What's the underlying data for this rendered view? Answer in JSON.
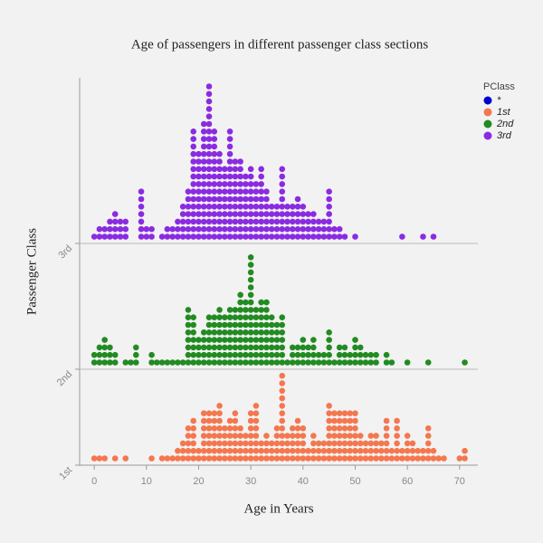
{
  "chart_data": {
    "type": "dotplot",
    "title": "Age of passengers in  different passenger class sections",
    "x_label": "Age in Years",
    "y_label": "Passenger Class",
    "categories": [
      "1st",
      "2nd",
      "3rd"
    ],
    "xlim": [
      -2.8,
      73.5
    ],
    "xticks": [
      0,
      10,
      20,
      30,
      40,
      50,
      60,
      70
    ],
    "legend_title": "PClass",
    "series": [
      {
        "name": "*",
        "color": "#0000cd",
        "x": [],
        "values": []
      },
      {
        "name": "1st",
        "color": "#f4774f",
        "x": [
          0,
          1,
          2,
          4,
          6,
          11,
          13,
          14,
          15,
          16,
          17,
          18,
          19,
          20,
          21,
          22,
          23,
          24,
          25,
          26,
          27,
          28,
          29,
          30,
          31,
          32,
          33,
          34,
          35,
          36,
          37,
          38,
          39,
          40,
          41,
          42,
          43,
          44,
          45,
          46,
          47,
          48,
          49,
          50,
          51,
          52,
          53,
          54,
          55,
          56,
          57,
          58,
          59,
          60,
          61,
          62,
          63,
          64,
          65,
          66,
          67,
          70,
          71
        ],
        "values": [
          1,
          1,
          1,
          1,
          1,
          1,
          1,
          1,
          1,
          2,
          3,
          5,
          6,
          2,
          7,
          7,
          7,
          8,
          5,
          6,
          7,
          5,
          4,
          7,
          8,
          3,
          4,
          3,
          5,
          12,
          4,
          5,
          6,
          5,
          2,
          4,
          3,
          3,
          8,
          7,
          7,
          7,
          7,
          7,
          4,
          3,
          4,
          4,
          3,
          6,
          2,
          6,
          2,
          4,
          3,
          2,
          2,
          5,
          2,
          1,
          1,
          1,
          2
        ]
      },
      {
        "name": "2nd",
        "color": "#228b22",
        "x": [
          0,
          1,
          2,
          3,
          4,
          6,
          7,
          8,
          11,
          12,
          13,
          14,
          15,
          16,
          17,
          18,
          19,
          20,
          21,
          22,
          23,
          24,
          25,
          26,
          27,
          28,
          29,
          30,
          31,
          32,
          33,
          34,
          35,
          36,
          37,
          38,
          39,
          40,
          41,
          42,
          43,
          44,
          45,
          46,
          47,
          48,
          49,
          50,
          51,
          52,
          53,
          54,
          56,
          57,
          60,
          64,
          71
        ],
        "values": [
          2,
          3,
          4,
          3,
          2,
          1,
          1,
          3,
          2,
          1,
          1,
          1,
          1,
          1,
          1,
          8,
          7,
          4,
          5,
          7,
          7,
          8,
          7,
          8,
          8,
          10,
          9,
          15,
          8,
          9,
          9,
          7,
          6,
          7,
          1,
          3,
          3,
          4,
          3,
          4,
          2,
          2,
          5,
          1,
          3,
          3,
          2,
          4,
          3,
          2,
          2,
          2,
          2,
          1,
          1,
          1,
          1
        ]
      },
      {
        "name": "3rd",
        "color": "#8a2be2",
        "x": [
          0,
          1,
          2,
          3,
          4,
          5,
          6,
          9,
          10,
          11,
          13,
          14,
          15,
          16,
          17,
          18,
          19,
          20,
          21,
          22,
          23,
          24,
          25,
          26,
          27,
          28,
          29,
          30,
          31,
          32,
          33,
          34,
          35,
          36,
          37,
          38,
          39,
          40,
          41,
          42,
          43,
          44,
          45,
          46,
          47,
          48,
          50,
          59,
          63,
          65
        ],
        "values": [
          1,
          2,
          2,
          3,
          4,
          3,
          3,
          7,
          2,
          2,
          1,
          2,
          2,
          3,
          5,
          7,
          15,
          12,
          16,
          21,
          15,
          12,
          10,
          15,
          11,
          11,
          9,
          10,
          8,
          10,
          7,
          5,
          5,
          10,
          5,
          5,
          6,
          5,
          4,
          4,
          3,
          3,
          7,
          2,
          2,
          1,
          1,
          1,
          1,
          1
        ]
      }
    ]
  }
}
